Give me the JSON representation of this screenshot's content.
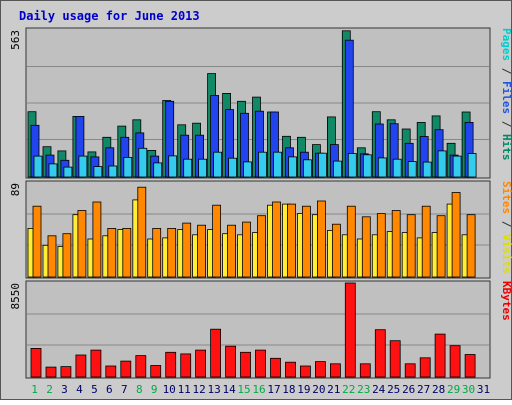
{
  "chart_data": {
    "type": "bar",
    "title": "Daily usage for June 2013",
    "categories": [
      "1",
      "2",
      "3",
      "4",
      "5",
      "6",
      "7",
      "8",
      "9",
      "10",
      "11",
      "12",
      "13",
      "14",
      "15",
      "16",
      "17",
      "18",
      "19",
      "20",
      "21",
      "22",
      "23",
      "24",
      "25",
      "26",
      "27",
      "28",
      "29",
      "30",
      "31"
    ],
    "weekend_days": [
      1,
      2,
      8,
      9,
      15,
      16,
      22,
      23,
      29,
      30
    ],
    "panels": [
      {
        "id": "pages-files-hits",
        "ymax_label": "563",
        "ylim": [
          0,
          563
        ],
        "right_label": [
          {
            "text": "Pages",
            "color": "#00cccc"
          },
          {
            "text": " / ",
            "color": "#333333"
          },
          {
            "text": "Files",
            "color": "#2255dd"
          },
          {
            "text": " / ",
            "color": "#333333"
          },
          {
            "text": "Hits",
            "color": "#008866"
          }
        ],
        "series": [
          {
            "name": "Hits",
            "color": "#118866",
            "values": [
              250,
              116,
              100,
              232,
              96,
              152,
              195,
              219,
              102,
              293,
              200,
              206,
              396,
              320,
              290,
              306,
              249,
              156,
              152,
              124,
              230,
              560,
              112,
              250,
              219,
              184,
              209,
              234,
              129,
              249,
              0
            ]
          },
          {
            "name": "Files",
            "color": "#2244ee",
            "values": [
              198,
              84,
              64,
              232,
              77,
              112,
              152,
              169,
              80,
              290,
              160,
              160,
              312,
              258,
              244,
              252,
              249,
              112,
              95,
              91,
              124,
              524,
              89,
              203,
              204,
              129,
              155,
              181,
              84,
              209,
              0
            ]
          },
          {
            "name": "Pages",
            "color": "#33ccee",
            "values": [
              80,
              50,
              38,
              80,
              40,
              42,
              75,
              110,
              54,
              81,
              68,
              68,
              95,
              72,
              58,
              95,
              95,
              77,
              66,
              91,
              61,
              90,
              85,
              73,
              68,
              59,
              57,
              100,
              80,
              90,
              0
            ]
          }
        ]
      },
      {
        "id": "sites-visits",
        "ymax_label": "89",
        "ylim": [
          0,
          89
        ],
        "right_label": [
          {
            "text": "Sites",
            "color": "#ff8800"
          },
          {
            "text": " / ",
            "color": "#333333"
          },
          {
            "text": "Visits",
            "color": "#dddd00"
          }
        ],
        "series": [
          {
            "name": "Visits",
            "color": "#ffee33",
            "values": [
              46,
              30,
              29,
              59,
              36,
              39,
              45,
              73,
              36,
              37,
              45,
              40,
              45,
              41,
              40,
              42,
              68,
              69,
              60,
              59,
              44,
              40,
              36,
              40,
              43,
              42,
              37,
              42,
              69,
              40,
              0
            ]
          },
          {
            "name": "Sites",
            "color": "#ff8800",
            "values": [
              67,
              39,
              41,
              63,
              71,
              46,
              46,
              85,
              46,
              46,
              51,
              49,
              68,
              49,
              52,
              58,
              71,
              69,
              67,
              72,
              50,
              67,
              57,
              60,
              63,
              59,
              67,
              58,
              80,
              59,
              0
            ]
          }
        ]
      },
      {
        "id": "kbytes",
        "ymax_label": "8550",
        "ylim": [
          0,
          8550
        ],
        "right_label": [
          {
            "text": "KBytes",
            "color": "#ee0000"
          }
        ],
        "series": [
          {
            "name": "KBytes",
            "color": "#ff1111",
            "values": [
              2600,
              900,
              950,
              2000,
              2450,
              1000,
              1450,
              1950,
              1050,
              2250,
              2100,
              2450,
              4350,
              2800,
              2250,
              2450,
              1700,
              1350,
              1000,
              1400,
              1200,
              8550,
              1200,
              4300,
              3300,
              1200,
              1750,
              3900,
              2850,
              2050,
              0
            ]
          }
        ]
      }
    ]
  }
}
